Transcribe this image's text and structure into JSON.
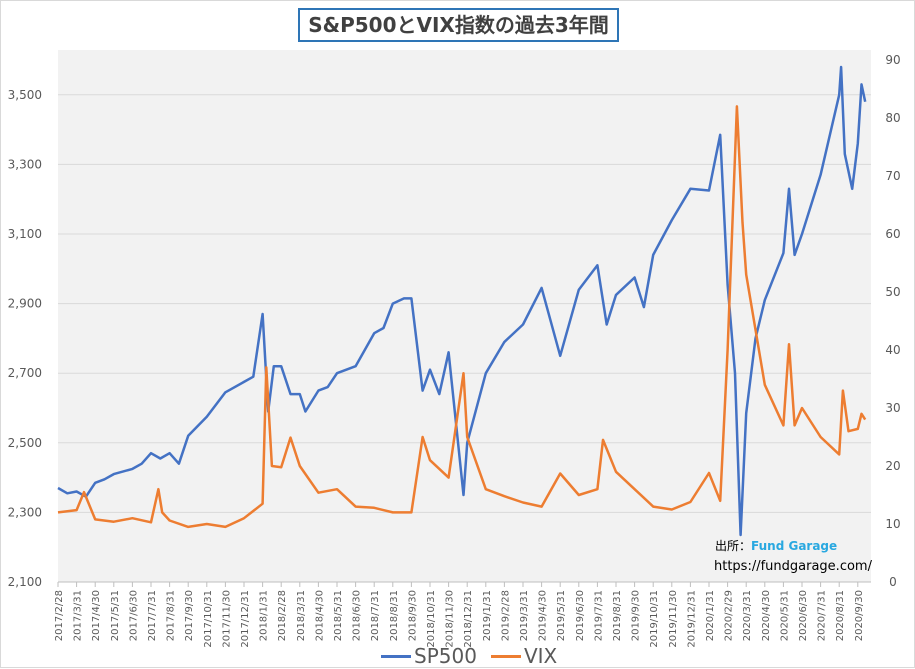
{
  "chart_data": {
    "type": "line",
    "title": "S&P500とVIX指数の過去3年間",
    "source_label": "出所：",
    "source_brand": "Fund Garage",
    "source_url": "https://fundgarage.com/",
    "categories": [
      "2017/2/28",
      "2017/3/31",
      "2017/4/30",
      "2017/5/31",
      "2017/6/30",
      "2017/7/31",
      "2017/8/31",
      "2017/9/30",
      "2017/10/31",
      "2017/11/30",
      "2017/12/31",
      "2018/1/31",
      "2018/2/28",
      "2018/3/31",
      "2018/4/30",
      "2018/5/31",
      "2018/6/30",
      "2018/7/31",
      "2018/8/31",
      "2018/9/30",
      "2018/10/31",
      "2018/11/30",
      "2018/12/31",
      "2019/1/31",
      "2019/2/28",
      "2019/3/31",
      "2019/4/30",
      "2019/5/31",
      "2019/6/30",
      "2019/7/31",
      "2019/8/31",
      "2019/9/30",
      "2019/10/31",
      "2019/11/30",
      "2019/12/31",
      "2020/1/31",
      "2020/2/29",
      "2020/3/31",
      "2020/4/30",
      "2020/5/31",
      "2020/6/30",
      "2020/7/31",
      "2020/8/31",
      "2020/9/30"
    ],
    "y_left": {
      "min": 2100,
      "max": 3600,
      "ticks": [
        "2,100",
        "2,300",
        "2,500",
        "2,700",
        "2,900",
        "3,100",
        "3,300",
        "3,500"
      ],
      "tick_values": [
        2100,
        2300,
        2500,
        2700,
        2900,
        3100,
        3300,
        3500
      ]
    },
    "y_right": {
      "min": 0,
      "max": 90,
      "ticks": [
        "0",
        "10",
        "20",
        "30",
        "40",
        "50",
        "60",
        "70",
        "80",
        "90"
      ],
      "tick_values": [
        0,
        10,
        20,
        30,
        40,
        50,
        60,
        70,
        80,
        90
      ]
    },
    "grid": true,
    "legend_position": "bottom",
    "series": [
      {
        "name": "SP500",
        "axis": "left",
        "color": "#4472c4",
        "points": [
          [
            0,
            2370
          ],
          [
            0.5,
            2355
          ],
          [
            1,
            2360
          ],
          [
            1.5,
            2345
          ],
          [
            2,
            2385
          ],
          [
            2.5,
            2395
          ],
          [
            3,
            2410
          ],
          [
            4,
            2425
          ],
          [
            4.5,
            2440
          ],
          [
            5,
            2470
          ],
          [
            5.5,
            2455
          ],
          [
            6,
            2470
          ],
          [
            6.5,
            2440
          ],
          [
            7,
            2520
          ],
          [
            8,
            2575
          ],
          [
            9,
            2645
          ],
          [
            10,
            2675
          ],
          [
            10.5,
            2690
          ],
          [
            11,
            2870
          ],
          [
            11.3,
            2590
          ],
          [
            11.6,
            2720
          ],
          [
            12,
            2720
          ],
          [
            12.5,
            2640
          ],
          [
            13,
            2640
          ],
          [
            13.3,
            2590
          ],
          [
            14,
            2650
          ],
          [
            14.5,
            2660
          ],
          [
            15,
            2700
          ],
          [
            16,
            2720
          ],
          [
            17,
            2815
          ],
          [
            17.5,
            2830
          ],
          [
            18,
            2900
          ],
          [
            18.6,
            2915
          ],
          [
            19,
            2915
          ],
          [
            19.6,
            2650
          ],
          [
            20,
            2710
          ],
          [
            20.5,
            2640
          ],
          [
            21,
            2760
          ],
          [
            21.8,
            2350
          ],
          [
            22,
            2500
          ],
          [
            23,
            2700
          ],
          [
            24,
            2790
          ],
          [
            25,
            2840
          ],
          [
            26,
            2945
          ],
          [
            27,
            2750
          ],
          [
            28,
            2940
          ],
          [
            29,
            3010
          ],
          [
            29.5,
            2840
          ],
          [
            30,
            2925
          ],
          [
            31,
            2975
          ],
          [
            31.5,
            2890
          ],
          [
            32,
            3040
          ],
          [
            33,
            3140
          ],
          [
            34,
            3230
          ],
          [
            35,
            3225
          ],
          [
            35.6,
            3385
          ],
          [
            36,
            2955
          ],
          [
            36.4,
            2700
          ],
          [
            36.7,
            2235
          ],
          [
            37,
            2585
          ],
          [
            37.5,
            2800
          ],
          [
            38,
            2910
          ],
          [
            39,
            3045
          ],
          [
            39.3,
            3230
          ],
          [
            39.6,
            3040
          ],
          [
            40,
            3100
          ],
          [
            41,
            3270
          ],
          [
            42,
            3500
          ],
          [
            42.1,
            3580
          ],
          [
            42.3,
            3330
          ],
          [
            42.7,
            3230
          ],
          [
            43,
            3360
          ],
          [
            43.2,
            3530
          ],
          [
            43.4,
            3480
          ]
        ]
      },
      {
        "name": "VIX",
        "axis": "right",
        "color": "#ed7d31",
        "points": [
          [
            0,
            12
          ],
          [
            1,
            12.4
          ],
          [
            1.4,
            15.5
          ],
          [
            2,
            10.8
          ],
          [
            3,
            10.4
          ],
          [
            4,
            11
          ],
          [
            5,
            10.3
          ],
          [
            5.4,
            16
          ],
          [
            5.6,
            12
          ],
          [
            6,
            10.6
          ],
          [
            7,
            9.5
          ],
          [
            8,
            10
          ],
          [
            9,
            9.5
          ],
          [
            10,
            11
          ],
          [
            11,
            13.5
          ],
          [
            11.2,
            37
          ],
          [
            11.5,
            20
          ],
          [
            12,
            19.8
          ],
          [
            12.5,
            24.9
          ],
          [
            13,
            20
          ],
          [
            14,
            15.4
          ],
          [
            15,
            16
          ],
          [
            16,
            13
          ],
          [
            17,
            12.8
          ],
          [
            18,
            12
          ],
          [
            19,
            12
          ],
          [
            19.6,
            25
          ],
          [
            20,
            21
          ],
          [
            21,
            18
          ],
          [
            21.8,
            36
          ],
          [
            22,
            25
          ],
          [
            23,
            16
          ],
          [
            24,
            14.8
          ],
          [
            25,
            13.7
          ],
          [
            26,
            13
          ],
          [
            27,
            18.7
          ],
          [
            28,
            15
          ],
          [
            29,
            16
          ],
          [
            29.3,
            24.5
          ],
          [
            30,
            19
          ],
          [
            31,
            16
          ],
          [
            32,
            13
          ],
          [
            33,
            12.5
          ],
          [
            34,
            13.8
          ],
          [
            35,
            18.8
          ],
          [
            35.6,
            14
          ],
          [
            36,
            40
          ],
          [
            36.5,
            82
          ],
          [
            36.8,
            62
          ],
          [
            37,
            53
          ],
          [
            38,
            34
          ],
          [
            39,
            27
          ],
          [
            39.3,
            41
          ],
          [
            39.6,
            27
          ],
          [
            40,
            30
          ],
          [
            41,
            25
          ],
          [
            42,
            22
          ],
          [
            42.2,
            33
          ],
          [
            42.5,
            26
          ],
          [
            43,
            26.4
          ],
          [
            43.2,
            29
          ],
          [
            43.4,
            28
          ]
        ]
      }
    ]
  }
}
